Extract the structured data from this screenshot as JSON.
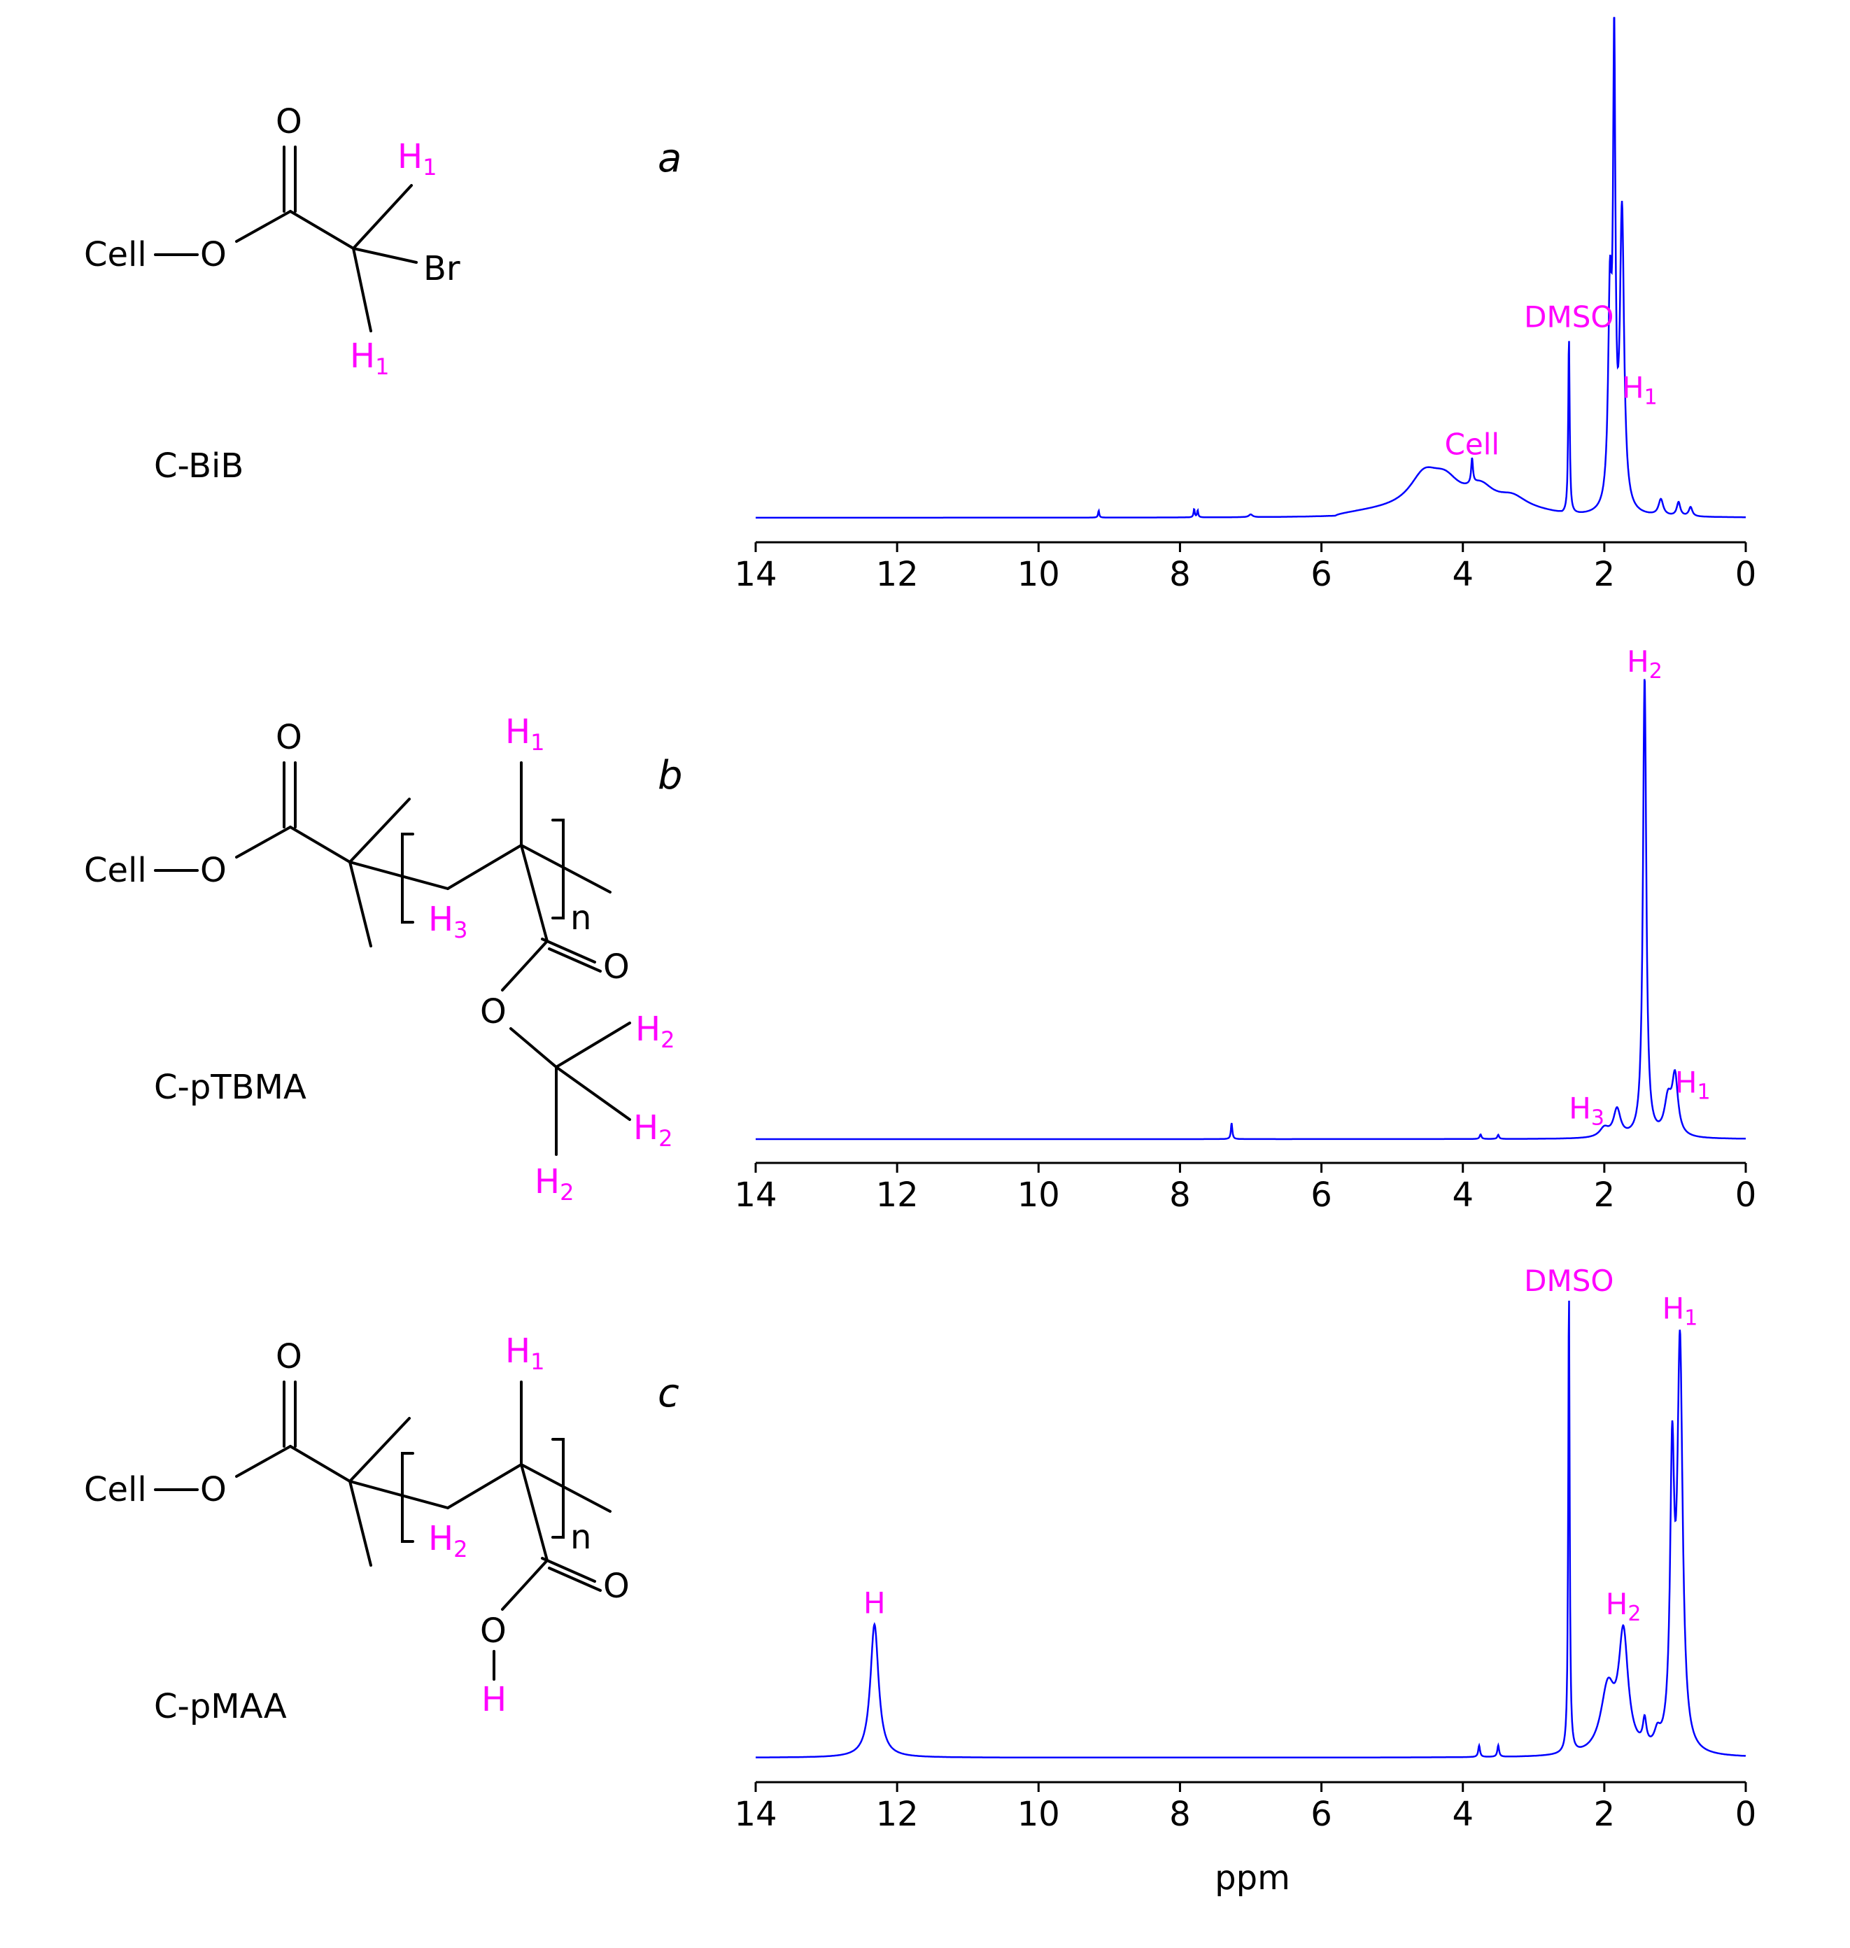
{
  "chart_data": [
    {
      "type": "line",
      "panel": "a",
      "compound": "C-BiB",
      "xlabel": "",
      "xlim": [
        14,
        0
      ],
      "x_ticks": [
        14,
        12,
        10,
        8,
        6,
        4,
        2,
        0
      ],
      "ylim": [
        0,
        100
      ],
      "colors": {
        "line": "#0000ff",
        "annotation": "#ff00ff"
      },
      "peaks": [
        {
          "ppm": 9.15,
          "height": 1.5,
          "width": 0.01
        },
        {
          "ppm": 7.8,
          "height": 1.8,
          "width": 0.01
        },
        {
          "ppm": 7.75,
          "height": 1.5,
          "width": 0.01
        },
        {
          "ppm": 7.0,
          "height": 0.6,
          "width": 0.03
        },
        {
          "ppm": 4.55,
          "height": 6.5,
          "width": 0.25
        },
        {
          "ppm": 4.25,
          "height": 5.0,
          "width": 0.25
        },
        {
          "ppm": 3.75,
          "height": 4.0,
          "width": 0.22
        },
        {
          "ppm": 3.3,
          "height": 2.5,
          "width": 0.25
        },
        {
          "ppm": 3.87,
          "height": 5.5,
          "width": 0.015
        },
        {
          "ppm": 2.5,
          "height": 38,
          "width": 0.012
        },
        {
          "ppm": 1.92,
          "height": 44,
          "width": 0.03
        },
        {
          "ppm": 1.86,
          "height": 95,
          "width": 0.02
        },
        {
          "ppm": 1.75,
          "height": 64,
          "width": 0.035
        },
        {
          "ppm": 1.2,
          "height": 3.5,
          "width": 0.04
        },
        {
          "ppm": 0.95,
          "height": 3.0,
          "width": 0.03
        },
        {
          "ppm": 0.78,
          "height": 2.0,
          "width": 0.03
        }
      ],
      "broad": [
        {
          "from": 5.8,
          "to": 2.6,
          "height": 1.8
        }
      ],
      "annotations": [
        {
          "text": "DMSO",
          "ppm": 2.5
        },
        {
          "text": "Cell",
          "ppm": 3.87
        },
        {
          "text": "H",
          "sub": "1",
          "ppm": 1.5
        }
      ]
    },
    {
      "type": "line",
      "panel": "b",
      "compound": "C-pTBMA",
      "xlabel": "",
      "xlim": [
        14,
        0
      ],
      "x_ticks": [
        14,
        12,
        10,
        8,
        6,
        4,
        2,
        0
      ],
      "ylim": [
        0,
        100
      ],
      "colors": {
        "line": "#0000ff",
        "annotation": "#ff00ff"
      },
      "peaks": [
        {
          "ppm": 7.27,
          "height": 3.5,
          "width": 0.012
        },
        {
          "ppm": 3.75,
          "height": 1.0,
          "width": 0.015
        },
        {
          "ppm": 3.5,
          "height": 0.9,
          "width": 0.015
        },
        {
          "ppm": 2.0,
          "height": 2.0,
          "width": 0.08
        },
        {
          "ppm": 1.82,
          "height": 6.0,
          "width": 0.06
        },
        {
          "ppm": 1.43,
          "height": 100,
          "width": 0.028
        },
        {
          "ppm": 1.1,
          "height": 7.5,
          "width": 0.06
        },
        {
          "ppm": 1.0,
          "height": 12.5,
          "width": 0.05
        }
      ],
      "broad": [],
      "annotations": [
        {
          "text": "H",
          "sub": "2",
          "ppm": 1.43
        },
        {
          "text": "H",
          "sub": "3",
          "ppm": 2.25
        },
        {
          "text": "H",
          "sub": "1",
          "ppm": 0.75
        }
      ]
    },
    {
      "type": "line",
      "panel": "c",
      "compound": "C-pMAA",
      "xlabel": "ppm",
      "xlim": [
        14,
        0
      ],
      "x_ticks": [
        14,
        12,
        10,
        8,
        6,
        4,
        2,
        0
      ],
      "ylim": [
        0,
        100
      ],
      "colors": {
        "line": "#0000ff",
        "annotation": "#ff00ff"
      },
      "peaks": [
        {
          "ppm": 12.32,
          "height": 29,
          "width": 0.07
        },
        {
          "ppm": 3.77,
          "height": 2.5,
          "width": 0.015
        },
        {
          "ppm": 3.5,
          "height": 2.5,
          "width": 0.015
        },
        {
          "ppm": 2.5,
          "height": 100,
          "width": 0.012
        },
        {
          "ppm": 1.95,
          "height": 14,
          "width": 0.12
        },
        {
          "ppm": 1.73,
          "height": 25,
          "width": 0.08
        },
        {
          "ppm": 1.43,
          "height": 5.5,
          "width": 0.03
        },
        {
          "ppm": 1.25,
          "height": 3.0,
          "width": 0.05
        },
        {
          "ppm": 1.04,
          "height": 60,
          "width": 0.035
        },
        {
          "ppm": 0.93,
          "height": 87,
          "width": 0.045
        }
      ],
      "broad": [],
      "annotations": [
        {
          "text": "H",
          "sub": "",
          "ppm": 12.32
        },
        {
          "text": "DMSO",
          "ppm": 2.5
        },
        {
          "text": "H",
          "sub": "2",
          "ppm": 1.73
        },
        {
          "text": "H",
          "sub": "1",
          "ppm": 0.93
        }
      ]
    }
  ],
  "structures": {
    "a": {
      "name": "C-BiB",
      "cell": "Cell",
      "o1": "O",
      "o2": "O",
      "br": "Br",
      "h1": "H",
      "h1_sub": "1"
    },
    "b": {
      "name": "C-pTBMA",
      "cell": "Cell",
      "o": "O",
      "n": "n",
      "h1": "H",
      "h1_sub": "1",
      "h2": "H",
      "h2_sub": "2",
      "h3": "H",
      "h3_sub": "3"
    },
    "c": {
      "name": "C-pMAA",
      "cell": "Cell",
      "o": "O",
      "n": "n",
      "h": "H",
      "h1": "H",
      "h1_sub": "1",
      "h2": "H",
      "h2_sub": "2"
    }
  },
  "panel_letters": [
    "a",
    "b",
    "c"
  ],
  "xlabel": "ppm"
}
